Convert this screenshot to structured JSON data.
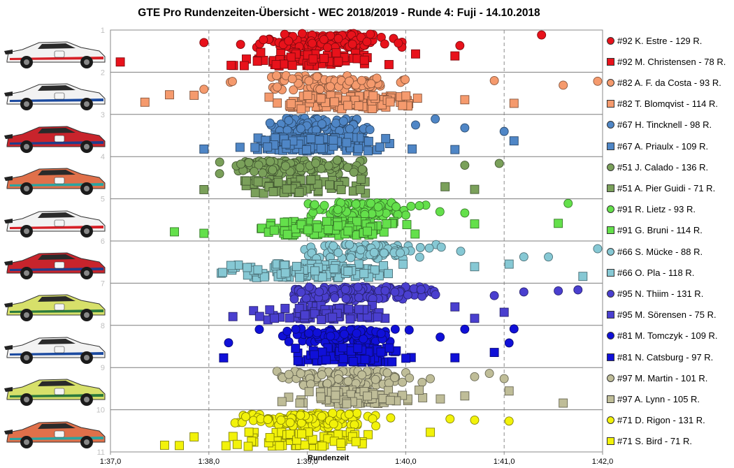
{
  "title": "GTE Pro Rundenzeiten-Übersicht  - WEC 2018/2019  - Runde 4: Fuji  - 14.10.2018",
  "chart_data": {
    "type": "scatter",
    "title": "GTE Pro Rundenzeiten-Übersicht  - WEC 2018/2019  - Runde 4: Fuji  - 14.10.2018",
    "xlabel": "Rundenzeit",
    "ylabel": "",
    "x_ticks": [
      "1:37,0",
      "1:38,0",
      "1:39,0",
      "1:40,0",
      "1:41,0",
      "1:42,0"
    ],
    "xlim_seconds": [
      97.0,
      102.0
    ],
    "y_ticks": [
      "1",
      "2",
      "3",
      "4",
      "5",
      "6",
      "7",
      "8",
      "9",
      "10",
      "11"
    ],
    "ylim": [
      1,
      11
    ],
    "grid": "vertical dashed at each second; horizontal line between cars",
    "legend_position": "right",
    "cars": [
      {
        "number": "#92",
        "color": "#e8121b",
        "livery": "#f2f2f2",
        "accent": "#d61f26",
        "drivers": [
          {
            "name": "#92 K. Estre - 129 R.",
            "marker": "circle",
            "x_range_s": [
              98.2,
              100.2
            ],
            "outliers": [
              100.55,
              101.38,
              97.95
            ]
          },
          {
            "name": "#92 M. Christensen - 78 R.",
            "marker": "square",
            "x_range_s": [
              98.1,
              100.0
            ],
            "outliers": [
              97.1,
              100.5,
              100.1
            ]
          }
        ]
      },
      {
        "number": "#82",
        "color": "#f59a6d",
        "livery": "#f2f2f2",
        "accent": "#1b4aa0",
        "drivers": [
          {
            "name": "#82 A. F. da Costa - 93 R.",
            "marker": "circle",
            "x_range_s": [
              98.2,
              100.3
            ],
            "outliers": [
              97.95,
              100.9,
              101.95,
              101.6
            ]
          },
          {
            "name": "#82 T. Blomqvist - 114 R.",
            "marker": "square",
            "x_range_s": [
              98.3,
              100.5
            ],
            "outliers": [
              97.35,
              97.6,
              97.85,
              100.6,
              101.1
            ]
          }
        ]
      },
      {
        "number": "#67",
        "color": "#4f86c6",
        "livery": "#c8242c",
        "accent": "#1f3d8c",
        "drivers": [
          {
            "name": "#67 H. Tincknell - 98 R.",
            "marker": "circle",
            "x_range_s": [
              98.3,
              99.8
            ],
            "outliers": [
              100.1,
              100.3,
              100.6,
              101.0
            ]
          },
          {
            "name": "#67 A. Priaulx - 109 R.",
            "marker": "square",
            "x_range_s": [
              98.0,
              100.1
            ],
            "outliers": [
              97.95,
              100.5,
              101.1
            ]
          }
        ]
      },
      {
        "number": "#51",
        "color": "#7aa05a",
        "livery": "#e0704a",
        "accent": "#2aa5a0",
        "drivers": [
          {
            "name": "#51 J. Calado - 136 R.",
            "marker": "circle",
            "x_range_s": [
              97.85,
              99.9
            ],
            "outliers": [
              100.6,
              100.95
            ]
          },
          {
            "name": "#51 A. Pier Guidi - 71 R.",
            "marker": "square",
            "x_range_s": [
              98.1,
              99.8
            ],
            "outliers": [
              97.95,
              100.4,
              100.7
            ]
          }
        ]
      },
      {
        "number": "#91",
        "color": "#64e04b",
        "livery": "#f2f2f2",
        "accent": "#d61f26",
        "drivers": [
          {
            "name": "#91 R. Lietz - 93 R.",
            "marker": "circle",
            "x_range_s": [
              98.8,
              100.4
            ],
            "outliers": [
              100.6,
              101.65
            ]
          },
          {
            "name": "#91 G. Bruni - 114 R.",
            "marker": "square",
            "x_range_s": [
              98.2,
              100.3
            ],
            "outliers": [
              97.65,
              97.95,
              100.7,
              101.55
            ]
          }
        ]
      },
      {
        "number": "#66",
        "color": "#86c8d4",
        "livery": "#c8242c",
        "accent": "#1f3d8c",
        "drivers": [
          {
            "name": "#66 S. Mücke - 88 R.",
            "marker": "circle",
            "x_range_s": [
              98.6,
              100.7
            ],
            "outliers": [
              101.2,
              101.45,
              101.95
            ]
          },
          {
            "name": "#66 O. Pla - 118 R.",
            "marker": "square",
            "x_range_s": [
              97.9,
              100.2
            ],
            "outliers": [
              100.7,
              101.05,
              101.8
            ]
          }
        ]
      },
      {
        "number": "#95",
        "color": "#4a3fcf",
        "livery": "#d7e06a",
        "accent": "#2b7a3d",
        "drivers": [
          {
            "name": "#95 N. Thiim - 131 R.",
            "marker": "circle",
            "x_range_s": [
              98.6,
              100.6
            ],
            "outliers": [
              100.9,
              101.2,
              101.55,
              101.75
            ]
          },
          {
            "name": "#95 M. Sörensen - 75 R.",
            "marker": "square",
            "x_range_s": [
              98.2,
              100.2
            ],
            "outliers": [
              100.5,
              100.7,
              101.0
            ]
          }
        ]
      },
      {
        "number": "#81",
        "color": "#1010d8",
        "livery": "#f2f2f2",
        "accent": "#1b4aa0",
        "drivers": [
          {
            "name": "#81 M. Tomczyk - 109 R.",
            "marker": "circle",
            "x_range_s": [
              98.4,
              100.2
            ],
            "outliers": [
              98.2,
              100.35,
              100.6,
              101.1,
              101.05
            ]
          },
          {
            "name": "#81 N. Catsburg - 97 R.",
            "marker": "square",
            "x_range_s": [
              98.6,
              100.3
            ],
            "outliers": [
              98.15,
              100.5,
              100.9
            ]
          }
        ]
      },
      {
        "number": "#97",
        "color": "#bfbd98",
        "livery": "#d7e06a",
        "accent": "#2b7a3d",
        "drivers": [
          {
            "name": "#97 M. Martin - 101 R.",
            "marker": "circle",
            "x_range_s": [
              98.4,
              100.5
            ],
            "outliers": [
              100.7,
              100.85,
              101.0
            ]
          },
          {
            "name": "#97 A. Lynn - 105 R.",
            "marker": "square",
            "x_range_s": [
              98.6,
              100.4
            ],
            "outliers": [
              100.6,
              101.05,
              101.6
            ]
          }
        ]
      },
      {
        "number": "#71",
        "color": "#f2f20a",
        "livery": "#e0704a",
        "accent": "#2aa5a0",
        "drivers": [
          {
            "name": "#71 D. Rigon - 131 R.",
            "marker": "circle",
            "x_range_s": [
              97.95,
              100.1
            ],
            "outliers": [
              100.45,
              100.7,
              101.05
            ]
          },
          {
            "name": "#71 S. Bird - 71 R.",
            "marker": "square",
            "x_range_s": [
              98.0,
              100.0
            ],
            "outliers": [
              97.55,
              97.7,
              97.85,
              100.25
            ]
          }
        ]
      }
    ]
  }
}
